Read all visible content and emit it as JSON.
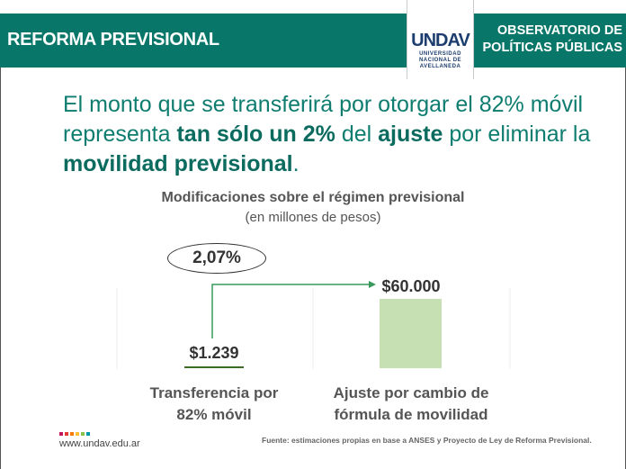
{
  "header": {
    "left_title": "REFORMA PREVISIONAL",
    "logo_mark": "UNDAV",
    "logo_text": [
      "UNIVERSIDAD",
      "NACIONAL DE",
      "AVELLANEDA"
    ],
    "right_title_1": "OBSERVATORIO DE",
    "right_title_2": "POLÍTICAS PÚBLICAS",
    "color": "#087668"
  },
  "headline": {
    "p1": "El monto que se transferirá por otorgar el 82% móvil representa ",
    "b1": "tan sólo un 2%",
    "p2": " del ",
    "b2": "ajuste",
    "p3": " por eliminar la ",
    "b3": "movilidad previsional",
    "p4": "."
  },
  "chart_data": {
    "type": "bar",
    "title": "Modificaciones sobre el régimen previsional",
    "subtitle": "(en millones de pesos)",
    "categories": [
      "Transferencia por 82% móvil",
      "Ajuste por cambio de fórmula de movilidad"
    ],
    "category_lines": [
      [
        "Transferencia por",
        "82% móvil"
      ],
      [
        "Ajuste por cambio de",
        "fórmula de movilidad"
      ]
    ],
    "values": [
      1239,
      60000
    ],
    "data_labels": [
      "$1.239",
      "$60.000"
    ],
    "annotation": "2,07%",
    "colors": [
      "#3c6e2a",
      "#c6e0b4"
    ],
    "ylim": [
      0,
      60000
    ]
  },
  "footer": {
    "url": "www.undav.edu.ar",
    "source": "Fuente: estimaciones propias en base a ANSES y Proyecto de Ley de Reforma Previsional.",
    "dot_colors": [
      "#c2185b",
      "#e53935",
      "#f57c00",
      "#fbc02d",
      "#8bc34a",
      "#0097a7"
    ]
  }
}
